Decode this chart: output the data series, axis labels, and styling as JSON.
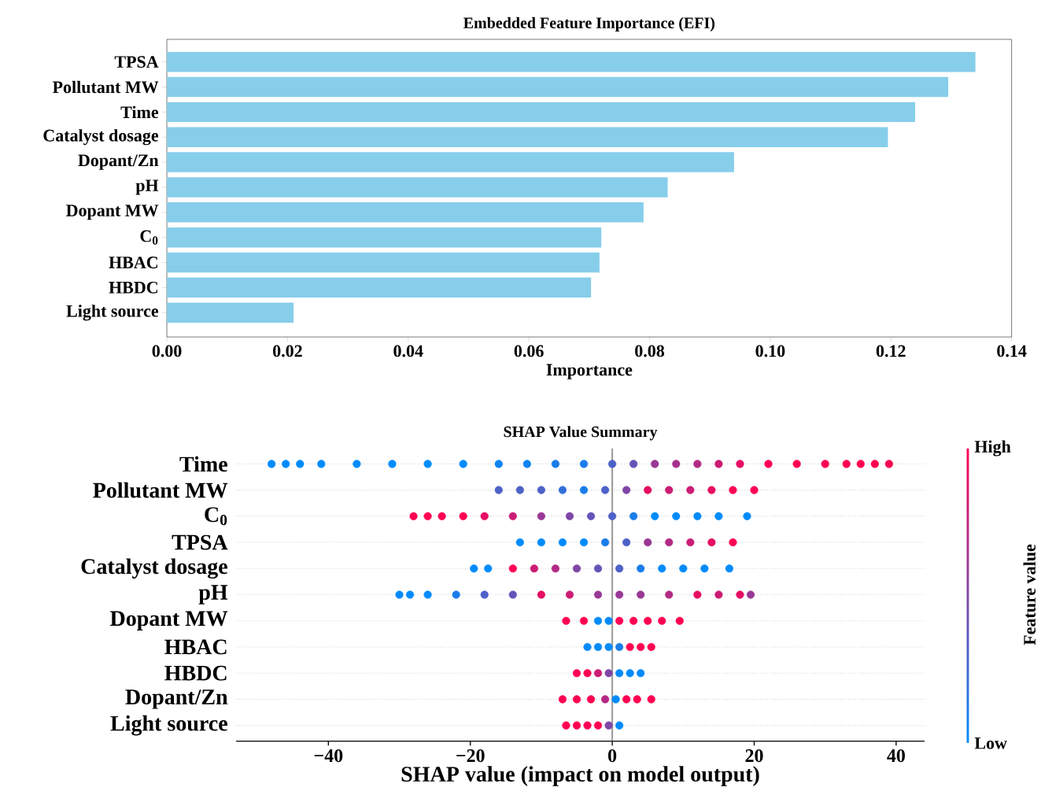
{
  "chart_data": [
    {
      "type": "bar",
      "orientation": "horizontal",
      "title": "Embedded Feature Importance (EFI)",
      "xlabel": "Importance",
      "categories": [
        "TPSA",
        "Pollutant MW",
        "Time",
        "Catalyst dosage",
        "Dopant/Zn",
        "pH",
        "Dopant MW",
        "C$_{0}$",
        "HBAC",
        "HBDC",
        "Light source"
      ],
      "values": [
        0.134,
        0.1295,
        0.124,
        0.1195,
        0.094,
        0.083,
        0.079,
        0.072,
        0.0717,
        0.0703,
        0.021
      ],
      "color": "#87ceeb",
      "xlim": [
        0,
        0.14
      ],
      "xticks": [
        {
          "value": 0,
          "label": "0.00"
        },
        0.02,
        0.04,
        0.06,
        0.08,
        {
          "value": 0.1,
          "label": "0.10"
        },
        0.12,
        0.14
      ]
    },
    {
      "type": "scatter",
      "orientation": "horizontal",
      "title": "SHAP Value Summary",
      "xlabel": "SHAP value (impact on model output)",
      "clabel": "Feature value",
      "annotations": [
        "Low",
        "High"
      ],
      "categories": [
        "Time",
        "Pollutant MW",
        "C$_{0}$",
        "TPSA",
        "Catalyst dosage",
        "pH",
        "Dopant MW",
        "HBAC",
        "HBDC",
        "Dopant/Zn",
        "Light source"
      ],
      "series": [
        {
          "x": [
            "Time",
            "Time",
            "Time",
            "Time",
            "Time",
            "Time",
            "Time",
            "Time",
            "Time",
            "Time",
            "Time",
            "Time",
            "Time",
            "Time",
            "Time",
            "Time",
            "Time",
            "Time",
            "Time",
            "Time",
            "Time",
            "Time",
            "Time",
            "Time",
            "Time",
            "Time"
          ],
          "values": [
            -48,
            -46,
            -44,
            -41,
            -36,
            -31,
            -26,
            -21,
            -16,
            -12,
            -8,
            -4,
            0,
            3,
            6,
            9,
            12,
            15,
            18,
            22,
            26,
            30,
            33,
            35,
            37,
            39
          ],
          "colors": [
            "#008bfb",
            "#008bfb",
            "#008bfb",
            "#008bfb",
            "#008bfb",
            "#008bfb",
            "#008bfb",
            "#008bfb",
            "#0d84f3",
            "#0d84f3",
            "#1a7dea",
            "#1a7dea",
            "#4d61c8",
            "#6653b7",
            "#993896",
            "#a6318d",
            "#b32a85",
            "#cc1c74",
            "#e60e63",
            "#ff0052",
            "#ff0052",
            "#ff0052",
            "#ff0052",
            "#ff0052",
            "#ff0052",
            "#ff0052"
          ]
        },
        {
          "x": [
            "Pollutant MW",
            "Pollutant MW",
            "Pollutant MW",
            "Pollutant MW",
            "Pollutant MW",
            "Pollutant MW",
            "Pollutant MW",
            "Pollutant MW",
            "Pollutant MW",
            "Pollutant MW",
            "Pollutant MW",
            "Pollutant MW",
            "Pollutant MW"
          ],
          "values": [
            -16,
            -13,
            -10,
            -7,
            -4,
            -1,
            2,
            5,
            8,
            11,
            14,
            17,
            20
          ],
          "colors": [
            "#4d61c8",
            "#4d61c8",
            "#4d61c8",
            "#336fd9",
            "#1a7dea",
            "#4d61c8",
            "#8046a6",
            "#e60e63",
            "#cc1c74",
            "#cc1c74",
            "#e60e63",
            "#ff0052",
            "#ff0052"
          ]
        },
        {
          "x": [
            "C$_{0}$",
            "C$_{0}$",
            "C$_{0}$",
            "C$_{0}$",
            "C$_{0}$",
            "C$_{0}$",
            "C$_{0}$",
            "C$_{0}$",
            "C$_{0}$",
            "C$_{0}$",
            "C$_{0}$",
            "C$_{0}$",
            "C$_{0}$",
            "C$_{0}$",
            "C$_{0}$",
            "C$_{0}$"
          ],
          "values": [
            -28,
            -26,
            -24,
            -21,
            -18,
            -14,
            -10,
            -6,
            -3,
            0,
            3,
            6,
            9,
            12,
            15,
            19
          ],
          "colors": [
            "#ff0052",
            "#ff0052",
            "#ff0052",
            "#ff0052",
            "#e60e63",
            "#cc1c74",
            "#993896",
            "#8046a6",
            "#6653b7",
            "#4d61c8",
            "#1a7dea",
            "#008bfb",
            "#008bfb",
            "#008bfb",
            "#008bfb",
            "#008bfb"
          ]
        },
        {
          "x": [
            "TPSA",
            "TPSA",
            "TPSA",
            "TPSA",
            "TPSA",
            "TPSA",
            "TPSA",
            "TPSA",
            "TPSA",
            "TPSA",
            "TPSA"
          ],
          "values": [
            -13,
            -10,
            -7,
            -4,
            -1,
            2,
            5,
            8,
            11,
            14,
            17
          ],
          "colors": [
            "#008bfb",
            "#008bfb",
            "#008bfb",
            "#008bfb",
            "#1a7dea",
            "#4d61c8",
            "#993896",
            "#b32a85",
            "#cc1c74",
            "#e60e63",
            "#ff0052"
          ]
        },
        {
          "x": [
            "Catalyst dosage",
            "Catalyst dosage",
            "Catalyst dosage",
            "Catalyst dosage",
            "Catalyst dosage",
            "Catalyst dosage",
            "Catalyst dosage",
            "Catalyst dosage",
            "Catalyst dosage",
            "Catalyst dosage",
            "Catalyst dosage",
            "Catalyst dosage",
            "Catalyst dosage"
          ],
          "values": [
            -19.5,
            -17.5,
            -14,
            -11,
            -8,
            -5,
            -2,
            1,
            4,
            7,
            10,
            13,
            16.5
          ],
          "colors": [
            "#008bfb",
            "#008bfb",
            "#ff0052",
            "#cc1c74",
            "#b32a85",
            "#8046a6",
            "#6653b7",
            "#4d61c8",
            "#1a7dea",
            "#008bfb",
            "#008bfb",
            "#008bfb",
            "#008bfb"
          ]
        },
        {
          "x": [
            "pH",
            "pH",
            "pH",
            "pH",
            "pH",
            "pH",
            "pH",
            "pH",
            "pH",
            "pH",
            "pH",
            "pH",
            "pH",
            "pH",
            "pH",
            "pH"
          ],
          "values": [
            -30,
            -28.5,
            -26,
            -22,
            -18,
            -14,
            -10,
            -6,
            -2,
            1,
            4,
            8,
            12,
            15,
            18,
            19.5
          ],
          "colors": [
            "#008bfb",
            "#008bfb",
            "#008bfb",
            "#1a7dea",
            "#4d61c8",
            "#6653b7",
            "#e60e63",
            "#cc1c74",
            "#993896",
            "#993896",
            "#993896",
            "#b32a85",
            "#e60e63",
            "#cc1c74",
            "#e60e63",
            "#993896"
          ]
        },
        {
          "x": [
            "Dopant MW",
            "Dopant MW",
            "Dopant MW",
            "Dopant MW",
            "Dopant MW",
            "Dopant MW",
            "Dopant MW",
            "Dopant MW",
            "Dopant MW"
          ],
          "values": [
            -6.5,
            -4,
            -2,
            -0.5,
            1,
            3,
            5,
            7,
            9.5
          ],
          "colors": [
            "#ff0052",
            "#ff0052",
            "#008bfb",
            "#008bfb",
            "#ff0052",
            "#ff0052",
            "#ff0052",
            "#ff0052",
            "#ff0052"
          ]
        },
        {
          "x": [
            "HBAC",
            "HBAC",
            "HBAC",
            "HBAC",
            "HBAC",
            "HBAC",
            "HBAC"
          ],
          "values": [
            -3.5,
            -2,
            -0.5,
            1,
            2.5,
            4,
            5.5
          ],
          "colors": [
            "#008bfb",
            "#008bfb",
            "#008bfb",
            "#1a7dea",
            "#ff0052",
            "#ff0052",
            "#ff0052"
          ]
        },
        {
          "x": [
            "HBDC",
            "HBDC",
            "HBDC",
            "HBDC",
            "HBDC",
            "HBDC",
            "HBDC"
          ],
          "values": [
            -5,
            -3.5,
            -2,
            -0.5,
            1,
            2.5,
            4
          ],
          "colors": [
            "#ff0052",
            "#ff0052",
            "#cc1c74",
            "#8046a6",
            "#008bfb",
            "#008bfb",
            "#008bfb"
          ]
        },
        {
          "x": [
            "Dopant/Zn",
            "Dopant/Zn",
            "Dopant/Zn",
            "Dopant/Zn",
            "Dopant/Zn",
            "Dopant/Zn",
            "Dopant/Zn",
            "Dopant/Zn"
          ],
          "values": [
            -7,
            -5,
            -3,
            -1,
            0.5,
            2,
            3.5,
            5.5
          ],
          "colors": [
            "#ff0052",
            "#ff0052",
            "#ff0052",
            "#b32a85",
            "#008bfb",
            "#ff0052",
            "#ff0052",
            "#ff0052"
          ]
        },
        {
          "x": [
            "Light source",
            "Light source",
            "Light source",
            "Light source",
            "Light source",
            "Light source"
          ],
          "values": [
            -6.5,
            -5,
            -3.5,
            -2,
            -0.5,
            1
          ],
          "colors": [
            "#ff0052",
            "#ff0052",
            "#ff0052",
            "#ff0052",
            "#8046a6",
            "#008bfb"
          ]
        }
      ],
      "grid": "y",
      "ref_lines": [
        {
          "axis": "x",
          "value": 0,
          "color": "#999999"
        }
      ],
      "xlim": [
        -53,
        44
      ],
      "xticks": [
        {
          "value": -40,
          "label": "−40"
        },
        {
          "value": -20,
          "label": "−20"
        },
        0,
        20,
        40
      ]
    }
  ]
}
